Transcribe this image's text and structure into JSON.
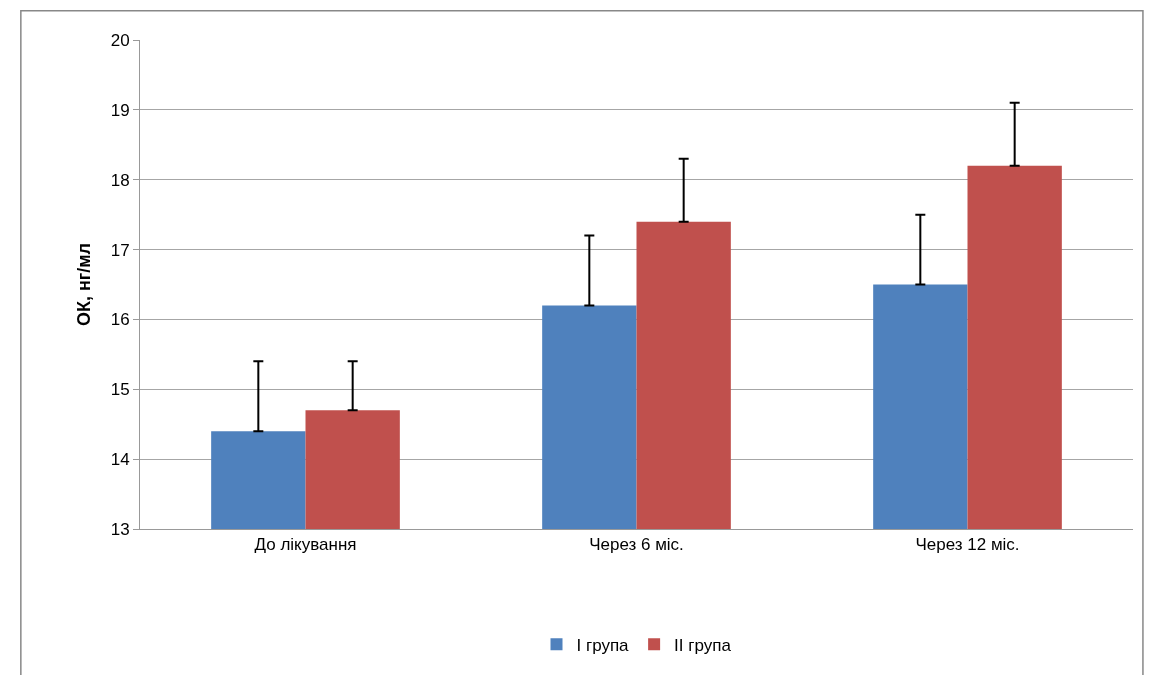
{
  "chart_data": {
    "type": "bar",
    "ylabel": "ОК, нг/мл",
    "categories": [
      "До лікування",
      "Через 6 міс.",
      "Через 12 міс."
    ],
    "series": [
      {
        "name": "І група",
        "color": "#4f81bd",
        "values": [
          14.4,
          16.2,
          16.5
        ],
        "errors": [
          [
            14.4,
            15.4
          ],
          [
            16.2,
            17.2
          ],
          [
            16.5,
            17.5
          ]
        ]
      },
      {
        "name": "ІІ група",
        "color": "#c0504d",
        "values": [
          14.7,
          17.4,
          18.2
        ],
        "errors": [
          [
            14.7,
            15.4
          ],
          [
            17.4,
            18.3
          ],
          [
            18.2,
            19.1
          ]
        ]
      }
    ],
    "ylim": [
      13,
      20
    ],
    "yticks": [
      13,
      14,
      15,
      16,
      17,
      18,
      19,
      20
    ],
    "grid": "y",
    "legend": "bottom"
  }
}
